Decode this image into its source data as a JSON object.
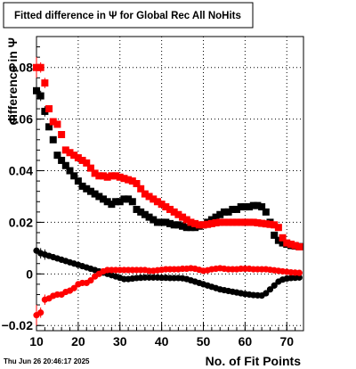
{
  "chart_data": {
    "type": "scatter",
    "title": "Fitted difference in  Ψ  for Global Rec All NoHits",
    "xlabel": "No. of Fit Points",
    "ylabel": "difference in  Ψ",
    "xlim": [
      10,
      74
    ],
    "ylim": [
      -0.022,
      0.092
    ],
    "xticks": [
      10,
      20,
      30,
      40,
      50,
      60,
      70
    ],
    "yticks": [
      -0.02,
      0,
      0.02,
      0.04,
      0.06,
      0.08
    ],
    "ytick_labels": [
      "−0.02",
      "0",
      "0.02",
      "0.04",
      "0.06",
      "0.08"
    ],
    "grid": true,
    "timestamp": "Thu Jun 26 20:46:17 2025",
    "series": [
      {
        "marker": "square",
        "color": "#000000",
        "x": [
          10,
          11,
          12,
          13,
          14,
          15,
          16,
          17,
          18,
          19,
          20,
          21,
          22,
          23,
          24,
          25,
          26,
          27,
          28,
          29,
          30,
          31,
          32,
          33,
          34,
          35,
          36,
          37,
          38,
          39,
          40,
          41,
          42,
          43,
          44,
          45,
          46,
          47,
          48,
          49,
          50,
          51,
          52,
          53,
          54,
          55,
          56,
          57,
          58,
          59,
          60,
          61,
          62,
          63,
          64,
          65,
          66,
          67,
          68,
          69,
          70,
          71,
          72,
          73
        ],
        "y": [
          0.071,
          0.069,
          0.063,
          0.057,
          0.052,
          0.046,
          0.044,
          0.042,
          0.04,
          0.038,
          0.036,
          0.034,
          0.033,
          0.032,
          0.031,
          0.03,
          0.029,
          0.028,
          0.027,
          0.028,
          0.028,
          0.029,
          0.029,
          0.028,
          0.025,
          0.024,
          0.023,
          0.022,
          0.021,
          0.02,
          0.02,
          0.02,
          0.0195,
          0.019,
          0.019,
          0.0185,
          0.018,
          0.018,
          0.018,
          0.0185,
          0.019,
          0.02,
          0.021,
          0.022,
          0.023,
          0.024,
          0.024,
          0.025,
          0.025,
          0.026,
          0.026,
          0.026,
          0.0265,
          0.0265,
          0.026,
          0.024,
          0.02,
          0.015,
          0.013,
          0.012,
          0.0115,
          0.011,
          0.0108,
          0.0106
        ]
      },
      {
        "marker": "square",
        "color": "#ff0000",
        "x": [
          10,
          11,
          12,
          13,
          14,
          15,
          16,
          17,
          18,
          19,
          20,
          21,
          22,
          23,
          24,
          25,
          26,
          27,
          28,
          29,
          30,
          31,
          32,
          33,
          34,
          35,
          36,
          37,
          38,
          39,
          40,
          41,
          42,
          43,
          44,
          45,
          46,
          47,
          48,
          49,
          50,
          51,
          52,
          53,
          54,
          55,
          56,
          57,
          58,
          59,
          60,
          61,
          62,
          63,
          64,
          65,
          66,
          67,
          68,
          69,
          70,
          71,
          72,
          73
        ],
        "y": [
          0.08,
          0.08,
          0.074,
          0.064,
          0.059,
          0.058,
          0.054,
          0.048,
          0.047,
          0.046,
          0.045,
          0.044,
          0.043,
          0.041,
          0.039,
          0.038,
          0.038,
          0.0375,
          0.038,
          0.038,
          0.0375,
          0.037,
          0.0365,
          0.036,
          0.035,
          0.033,
          0.031,
          0.03,
          0.029,
          0.028,
          0.027,
          0.026,
          0.025,
          0.024,
          0.023,
          0.022,
          0.021,
          0.02,
          0.0195,
          0.019,
          0.019,
          0.0192,
          0.0195,
          0.0198,
          0.02,
          0.02,
          0.02,
          0.02,
          0.02,
          0.02,
          0.02,
          0.02,
          0.02,
          0.0198,
          0.0196,
          0.0194,
          0.0192,
          0.019,
          0.018,
          0.014,
          0.012,
          0.0115,
          0.011,
          0.0105
        ]
      },
      {
        "marker": "circle",
        "color": "#000000",
        "x": [
          10,
          11,
          12,
          13,
          14,
          15,
          16,
          17,
          18,
          19,
          20,
          21,
          22,
          23,
          24,
          25,
          26,
          27,
          28,
          29,
          30,
          31,
          32,
          33,
          34,
          35,
          36,
          37,
          38,
          39,
          40,
          41,
          42,
          43,
          44,
          45,
          46,
          47,
          48,
          49,
          50,
          51,
          52,
          53,
          54,
          55,
          56,
          57,
          58,
          59,
          60,
          61,
          62,
          63,
          64,
          65,
          66,
          67,
          68,
          69,
          70,
          71,
          72,
          73
        ],
        "y": [
          0.009,
          0.008,
          0.0075,
          0.007,
          0.0065,
          0.006,
          0.0055,
          0.005,
          0.0045,
          0.004,
          0.0035,
          0.003,
          0.0025,
          0.002,
          0.0015,
          0.001,
          0.0005,
          0.0,
          -0.0005,
          -0.001,
          -0.0015,
          -0.002,
          -0.002,
          -0.0018,
          -0.0016,
          -0.0015,
          -0.0014,
          -0.0014,
          -0.0014,
          -0.0014,
          -0.0015,
          -0.0015,
          -0.0016,
          -0.0016,
          -0.0016,
          -0.0017,
          -0.002,
          -0.0025,
          -0.003,
          -0.0035,
          -0.004,
          -0.0045,
          -0.005,
          -0.0055,
          -0.006,
          -0.0063,
          -0.0066,
          -0.0069,
          -0.0072,
          -0.0075,
          -0.0078,
          -0.008,
          -0.0082,
          -0.0083,
          -0.0084,
          -0.0075,
          -0.006,
          -0.0045,
          -0.003,
          -0.0022,
          -0.0018,
          -0.0016,
          -0.0015,
          -0.0014
        ]
      },
      {
        "marker": "circle",
        "color": "#ff0000",
        "x": [
          10,
          11,
          12,
          13,
          14,
          15,
          16,
          17,
          18,
          19,
          20,
          21,
          22,
          23,
          24,
          25,
          26,
          27,
          28,
          29,
          30,
          31,
          32,
          33,
          34,
          35,
          36,
          37,
          38,
          39,
          40,
          41,
          42,
          43,
          44,
          45,
          46,
          47,
          48,
          49,
          50,
          51,
          52,
          53,
          54,
          55,
          56,
          57,
          58,
          59,
          60,
          61,
          62,
          63,
          64,
          65,
          66,
          67,
          68,
          69,
          70,
          71,
          72,
          73
        ],
        "y": [
          -0.016,
          -0.015,
          -0.01,
          -0.0095,
          -0.0085,
          -0.008,
          -0.008,
          -0.007,
          -0.0065,
          -0.0055,
          -0.004,
          -0.0035,
          -0.0035,
          -0.0025,
          -0.001,
          0.0,
          0.001,
          0.0015,
          0.0015,
          0.0015,
          0.0015,
          0.0015,
          0.0015,
          0.0015,
          0.0015,
          0.0015,
          0.0015,
          0.0012,
          0.0012,
          0.0014,
          0.0016,
          0.0018,
          0.0018,
          0.0018,
          0.0018,
          0.002,
          0.002,
          0.0022,
          0.002,
          0.0016,
          0.0012,
          0.0014,
          0.0018,
          0.002,
          0.0022,
          0.002,
          0.0018,
          0.0018,
          0.0018,
          0.002,
          0.002,
          0.002,
          0.0018,
          0.0018,
          0.0018,
          0.0018,
          0.0016,
          0.0014,
          0.0012,
          0.001,
          0.0008,
          0.0006,
          0.0005,
          0.0004
        ]
      }
    ]
  }
}
